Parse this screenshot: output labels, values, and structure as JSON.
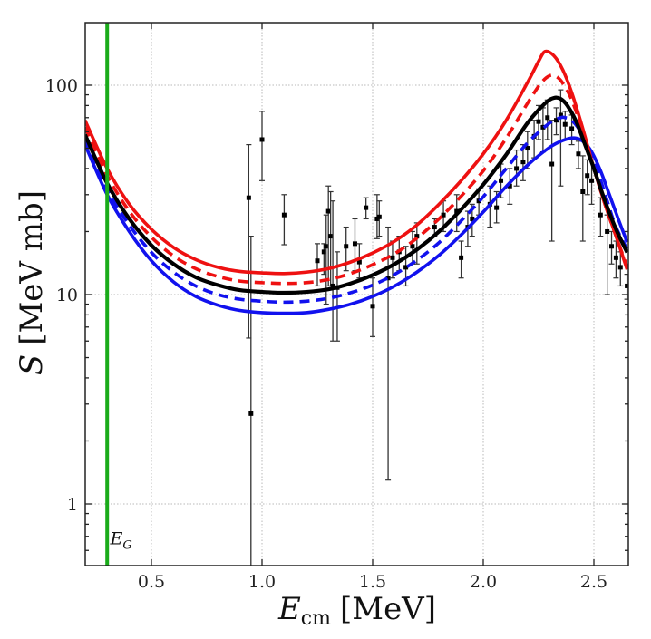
{
  "chart_data": {
    "type": "line",
    "title": "",
    "xlabel": "E_cm [MeV]",
    "xlabel_main": "E",
    "xlabel_sub": "cm",
    "xlabel_unit": "[MeV]",
    "ylabel": "S [MeV mb]",
    "ylabel_main": "S",
    "ylabel_unit": "[MeV mb]",
    "xlim": [
      0.2,
      2.65
    ],
    "ylim": [
      0.5,
      200
    ],
    "yscale": "log",
    "grid": true,
    "x_ticks": [
      0.5,
      1.0,
      1.5,
      2.0,
      2.5
    ],
    "x_tick_labels": [
      "0.5",
      "1.0",
      "1.5",
      "2.0",
      "2.5"
    ],
    "y_ticks": [
      1,
      10,
      100
    ],
    "y_tick_labels": [
      "1",
      "10",
      "100"
    ],
    "annotations": [
      {
        "text": "E_G",
        "main": "E",
        "sub": "G",
        "x": 0.33,
        "y": 0.68
      }
    ],
    "vertical_lines": [
      {
        "name": "Gamow energy E_G",
        "x": 0.3,
        "color": "#1aab1a"
      }
    ],
    "series": [
      {
        "name": "red-solid",
        "color": "#ee1111",
        "style": "solid",
        "x": [
          0.2,
          0.3,
          0.4,
          0.5,
          0.6,
          0.7,
          0.8,
          0.9,
          1.0,
          1.1,
          1.2,
          1.3,
          1.4,
          1.5,
          1.6,
          1.7,
          1.8,
          1.9,
          2.0,
          2.1,
          2.2,
          2.25,
          2.28,
          2.32,
          2.36,
          2.4,
          2.45,
          2.5,
          2.55,
          2.6,
          2.65
        ],
        "y": [
          68,
          40,
          27,
          20.5,
          16.8,
          14.7,
          13.5,
          12.9,
          12.7,
          12.6,
          12.8,
          13.3,
          14.3,
          15.8,
          18,
          21.5,
          27,
          35,
          47,
          67,
          103,
          130,
          145,
          138,
          118,
          92,
          62,
          40,
          27,
          19,
          13.2
        ]
      },
      {
        "name": "red-dashed",
        "color": "#ee1111",
        "style": "dashed",
        "x": [
          0.2,
          0.3,
          0.4,
          0.5,
          0.6,
          0.7,
          0.8,
          0.9,
          1.0,
          1.1,
          1.2,
          1.3,
          1.4,
          1.5,
          1.6,
          1.7,
          1.8,
          1.9,
          2.0,
          2.1,
          2.2,
          2.26,
          2.3,
          2.33,
          2.36,
          2.4,
          2.45,
          2.5,
          2.55,
          2.6,
          2.65
        ],
        "y": [
          63,
          37,
          25,
          18.8,
          15.3,
          13.3,
          12.2,
          11.6,
          11.4,
          11.3,
          11.4,
          11.8,
          12.6,
          13.9,
          15.7,
          18.6,
          23,
          29.5,
          39,
          55,
          82,
          102,
          111,
          110,
          102,
          85,
          60,
          40,
          27,
          19,
          13.6
        ]
      },
      {
        "name": "black-solid",
        "color": "#000000",
        "style": "solid",
        "x": [
          0.2,
          0.3,
          0.4,
          0.5,
          0.6,
          0.7,
          0.8,
          0.9,
          1.0,
          1.1,
          1.2,
          1.3,
          1.4,
          1.5,
          1.6,
          1.7,
          1.8,
          1.9,
          2.0,
          2.1,
          2.2,
          2.28,
          2.32,
          2.35,
          2.38,
          2.42,
          2.46,
          2.5,
          2.55,
          2.6,
          2.65
        ],
        "y": [
          58,
          34,
          23,
          17.2,
          14,
          12.1,
          11.1,
          10.5,
          10.3,
          10.2,
          10.3,
          10.6,
          11.3,
          12.4,
          14,
          16.4,
          20,
          25.5,
          33.5,
          46,
          66,
          82,
          87,
          86,
          80,
          67,
          52,
          40,
          28,
          20.5,
          15.9
        ]
      },
      {
        "name": "blue-dashed",
        "color": "#1111ee",
        "style": "dashed",
        "x": [
          0.2,
          0.3,
          0.4,
          0.5,
          0.6,
          0.7,
          0.8,
          0.9,
          1.0,
          1.1,
          1.2,
          1.3,
          1.4,
          1.5,
          1.6,
          1.7,
          1.8,
          1.9,
          2.0,
          2.1,
          2.2,
          2.3,
          2.35,
          2.37,
          2.4,
          2.44,
          2.48,
          2.52,
          2.56,
          2.6,
          2.65
        ],
        "y": [
          55,
          32,
          21.5,
          15.9,
          12.8,
          11,
          10,
          9.5,
          9.3,
          9.2,
          9.3,
          9.6,
          10.2,
          11.1,
          12.5,
          14.6,
          17.7,
          22.5,
          29.3,
          39.5,
          53,
          66,
          70,
          70,
          68,
          60,
          49,
          38,
          28,
          21,
          16.5
        ]
      },
      {
        "name": "blue-solid",
        "color": "#1111ee",
        "style": "solid",
        "x": [
          0.2,
          0.3,
          0.4,
          0.5,
          0.6,
          0.7,
          0.8,
          0.9,
          1.0,
          1.1,
          1.2,
          1.3,
          1.4,
          1.5,
          1.6,
          1.7,
          1.8,
          1.9,
          2.0,
          2.1,
          2.2,
          2.3,
          2.36,
          2.41,
          2.45,
          2.49,
          2.53,
          2.57,
          2.61,
          2.65
        ],
        "y": [
          52,
          30,
          20,
          14.5,
          11.5,
          9.8,
          8.9,
          8.4,
          8.2,
          8.15,
          8.2,
          8.5,
          9,
          9.8,
          11,
          12.8,
          15.4,
          19.3,
          24.8,
          32.5,
          41.5,
          50.5,
          54.5,
          56,
          54,
          48,
          39,
          30,
          23,
          17.8
        ]
      }
    ],
    "data_points": {
      "name": "experimental data",
      "color": "#000000",
      "points": [
        {
          "x": 0.94,
          "y": 29,
          "yerr_low": 6.2,
          "yerr_high": 52
        },
        {
          "x": 0.95,
          "y": 2.7,
          "yerr_low": 0.5,
          "yerr_high": 19
        },
        {
          "x": 1.0,
          "y": 55,
          "yerr_low": 35,
          "yerr_high": 75
        },
        {
          "x": 1.1,
          "y": 24,
          "yerr_low": 17.3,
          "yerr_high": 30
        },
        {
          "x": 1.25,
          "y": 14.5,
          "yerr_low": 11,
          "yerr_high": 17.5
        },
        {
          "x": 1.28,
          "y": 16,
          "yerr_low": 12.5,
          "yerr_high": 17.5
        },
        {
          "x": 1.29,
          "y": 17,
          "yerr_low": 9,
          "yerr_high": 24
        },
        {
          "x": 1.3,
          "y": 25,
          "yerr_low": 11,
          "yerr_high": 33
        },
        {
          "x": 1.31,
          "y": 19,
          "yerr_low": 11,
          "yerr_high": 31
        },
        {
          "x": 1.32,
          "y": 11,
          "yerr_low": 6,
          "yerr_high": 28
        },
        {
          "x": 1.34,
          "y": 10.8,
          "yerr_low": 6,
          "yerr_high": 16
        },
        {
          "x": 1.38,
          "y": 17,
          "yerr_low": 13,
          "yerr_high": 21
        },
        {
          "x": 1.42,
          "y": 17.5,
          "yerr_low": 13,
          "yerr_high": 23
        },
        {
          "x": 1.44,
          "y": 14.3,
          "yerr_low": 12,
          "yerr_high": 17.5
        },
        {
          "x": 1.47,
          "y": 26,
          "yerr_low": 23,
          "yerr_high": 29
        },
        {
          "x": 1.5,
          "y": 8.8,
          "yerr_low": 6.3,
          "yerr_high": 12
        },
        {
          "x": 1.52,
          "y": 23,
          "yerr_low": 18.5,
          "yerr_high": 30
        },
        {
          "x": 1.53,
          "y": 23.5,
          "yerr_low": 19,
          "yerr_high": 28
        },
        {
          "x": 1.57,
          "y": 12,
          "yerr_low": 1.3,
          "yerr_high": 21
        },
        {
          "x": 1.59,
          "y": 15,
          "yerr_low": 12,
          "yerr_high": 18
        },
        {
          "x": 1.62,
          "y": 16,
          "yerr_low": 13,
          "yerr_high": 19
        },
        {
          "x": 1.65,
          "y": 13.5,
          "yerr_low": 11,
          "yerr_high": 17
        },
        {
          "x": 1.68,
          "y": 17,
          "yerr_low": 14,
          "yerr_high": 20
        },
        {
          "x": 1.7,
          "y": 19,
          "yerr_low": 14,
          "yerr_high": 22
        },
        {
          "x": 1.78,
          "y": 21,
          "yerr_low": 19,
          "yerr_high": 23
        },
        {
          "x": 1.82,
          "y": 24,
          "yerr_low": 20,
          "yerr_high": 28
        },
        {
          "x": 1.88,
          "y": 25,
          "yerr_low": 20,
          "yerr_high": 30
        },
        {
          "x": 1.9,
          "y": 15,
          "yerr_low": 12,
          "yerr_high": 18
        },
        {
          "x": 1.93,
          "y": 21,
          "yerr_low": 17,
          "yerr_high": 25
        },
        {
          "x": 1.95,
          "y": 23,
          "yerr_low": 19,
          "yerr_high": 27
        },
        {
          "x": 1.98,
          "y": 28,
          "yerr_low": 24,
          "yerr_high": 32
        },
        {
          "x": 2.03,
          "y": 27,
          "yerr_low": 21,
          "yerr_high": 33
        },
        {
          "x": 2.06,
          "y": 26,
          "yerr_low": 22,
          "yerr_high": 31
        },
        {
          "x": 2.08,
          "y": 35,
          "yerr_low": 29,
          "yerr_high": 42
        },
        {
          "x": 2.12,
          "y": 33,
          "yerr_low": 27,
          "yerr_high": 40
        },
        {
          "x": 2.15,
          "y": 40,
          "yerr_low": 33,
          "yerr_high": 49
        },
        {
          "x": 2.18,
          "y": 43,
          "yerr_low": 35,
          "yerr_high": 52
        },
        {
          "x": 2.2,
          "y": 50,
          "yerr_low": 40,
          "yerr_high": 60
        },
        {
          "x": 2.23,
          "y": 57,
          "yerr_low": 45,
          "yerr_high": 68
        },
        {
          "x": 2.25,
          "y": 67,
          "yerr_low": 55,
          "yerr_high": 80
        },
        {
          "x": 2.27,
          "y": 63,
          "yerr_low": 48,
          "yerr_high": 78
        },
        {
          "x": 2.29,
          "y": 70,
          "yerr_low": 55,
          "yerr_high": 85
        },
        {
          "x": 2.31,
          "y": 42,
          "yerr_low": 18,
          "yerr_high": 68
        },
        {
          "x": 2.33,
          "y": 68,
          "yerr_low": 58,
          "yerr_high": 78
        },
        {
          "x": 2.35,
          "y": 72,
          "yerr_low": 33,
          "yerr_high": 95
        },
        {
          "x": 2.37,
          "y": 65,
          "yerr_low": 55,
          "yerr_high": 75
        },
        {
          "x": 2.4,
          "y": 62,
          "yerr_low": 52,
          "yerr_high": 72
        },
        {
          "x": 2.43,
          "y": 47,
          "yerr_low": 40,
          "yerr_high": 54
        },
        {
          "x": 2.45,
          "y": 31,
          "yerr_low": 18,
          "yerr_high": 46
        },
        {
          "x": 2.47,
          "y": 37,
          "yerr_low": 30,
          "yerr_high": 44
        },
        {
          "x": 2.49,
          "y": 35,
          "yerr_low": 27,
          "yerr_high": 44
        },
        {
          "x": 2.53,
          "y": 24,
          "yerr_low": 19,
          "yerr_high": 29
        },
        {
          "x": 2.56,
          "y": 20,
          "yerr_low": 10,
          "yerr_high": 24
        },
        {
          "x": 2.58,
          "y": 17,
          "yerr_low": 14,
          "yerr_high": 20
        },
        {
          "x": 2.6,
          "y": 15,
          "yerr_low": 12,
          "yerr_high": 18
        },
        {
          "x": 2.62,
          "y": 13.5,
          "yerr_low": 11,
          "yerr_high": 16
        },
        {
          "x": 2.65,
          "y": 11,
          "yerr_low": 9.5,
          "yerr_high": 12.5
        }
      ]
    }
  }
}
